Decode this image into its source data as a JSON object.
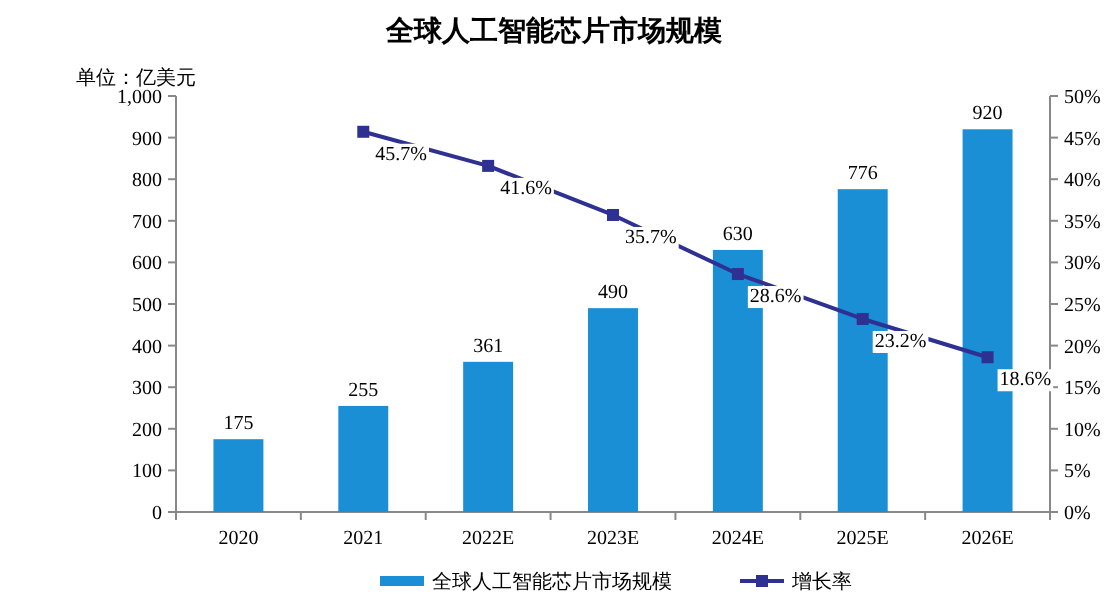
{
  "chart_data": {
    "type": "bar",
    "title": "全球人工智能芯片市场规模",
    "ylabel": "单位：亿美元",
    "categories": [
      "2020",
      "2021",
      "2022E",
      "2023E",
      "2024E",
      "2025E",
      "2026E"
    ],
    "series": [
      {
        "name": "全球人工智能芯片市场规模",
        "color": "#1a8fd6",
        "values": [
          175,
          255,
          361,
          490,
          630,
          776,
          920
        ],
        "value_labels": [
          "175",
          "255",
          "361",
          "490",
          "630",
          "776",
          "920"
        ]
      },
      {
        "name": "增长率",
        "type": "line",
        "axis": "y2",
        "color": "#2e3192",
        "marker": "square",
        "values": [
          null,
          45.7,
          41.6,
          35.7,
          28.6,
          23.2,
          18.6
        ],
        "value_labels": [
          null,
          "45.7%",
          "41.6%",
          "35.7%",
          "28.6%",
          "23.2%",
          "18.6%"
        ]
      }
    ],
    "ylim": [
      0,
      1000
    ],
    "yticks": [
      0,
      100,
      200,
      300,
      400,
      500,
      600,
      700,
      800,
      900,
      {
        "value": 1000,
        "label": "1,000"
      }
    ],
    "y2lim": [
      0,
      50
    ],
    "y2ticks": [
      {
        "value": 0,
        "label": "0%"
      },
      {
        "value": 5,
        "label": "5%"
      },
      {
        "value": 10,
        "label": "10%"
      },
      {
        "value": 15,
        "label": "15%"
      },
      {
        "value": 20,
        "label": "20%"
      },
      {
        "value": 25,
        "label": "25%"
      },
      {
        "value": 30,
        "label": "30%"
      },
      {
        "value": 35,
        "label": "35%"
      },
      {
        "value": 40,
        "label": "40%"
      },
      {
        "value": 45,
        "label": "45%"
      },
      {
        "value": 50,
        "label": "50%"
      }
    ],
    "legend": "bottom"
  }
}
